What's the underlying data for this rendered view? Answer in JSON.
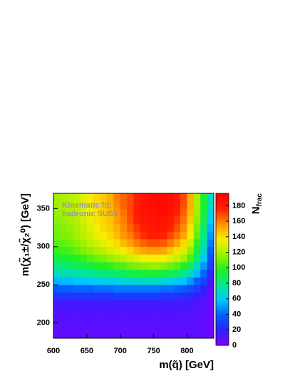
{
  "chart_data": {
    "type": "heatmap",
    "x_label": "m(q̃) [GeV]",
    "y_label": "m(χ̃₁±/χ̃₂⁰) [GeV]",
    "z_label": "N",
    "z_label_sub": "frac",
    "annotation": [
      "Kinematic fit:",
      "hadronic SUSY"
    ],
    "xbins": [
      600,
      610,
      620,
      630,
      640,
      650,
      660,
      670,
      680,
      690,
      700,
      710,
      720,
      730,
      740,
      750,
      760,
      770,
      780,
      790,
      800,
      810,
      820,
      830,
      840
    ],
    "ybins": [
      180,
      190,
      200,
      210,
      220,
      230,
      240,
      250,
      260,
      270,
      280,
      290,
      300,
      310,
      320,
      330,
      340,
      350,
      360,
      370
    ],
    "values": [
      [
        8,
        8,
        8,
        8,
        8,
        8,
        8,
        8,
        8,
        8,
        8,
        8,
        8,
        8,
        8,
        8,
        8,
        8,
        8,
        8,
        8,
        8,
        7,
        5
      ],
      [
        8,
        8,
        8,
        8,
        8,
        8,
        8,
        8,
        8,
        8,
        8,
        8,
        8,
        8,
        8,
        8,
        8,
        8,
        8,
        8,
        8,
        8,
        7,
        5
      ],
      [
        10,
        10,
        10,
        10,
        10,
        10,
        10,
        10,
        10,
        10,
        10,
        10,
        10,
        10,
        10,
        10,
        10,
        10,
        10,
        10,
        9,
        9,
        8,
        5
      ],
      [
        12,
        12,
        12,
        12,
        12,
        12,
        12,
        12,
        12,
        12,
        12,
        12,
        12,
        12,
        12,
        12,
        12,
        12,
        12,
        12,
        11,
        10,
        8,
        5
      ],
      [
        15,
        15,
        15,
        15,
        15,
        15,
        16,
        16,
        16,
        16,
        16,
        16,
        16,
        16,
        16,
        16,
        16,
        16,
        15,
        15,
        14,
        12,
        9,
        5
      ],
      [
        25,
        25,
        25,
        26,
        26,
        26,
        26,
        26,
        26,
        28,
        28,
        28,
        28,
        28,
        28,
        28,
        26,
        26,
        25,
        24,
        22,
        18,
        14,
        6
      ],
      [
        38,
        38,
        38,
        40,
        40,
        40,
        42,
        42,
        42,
        44,
        44,
        44,
        44,
        44,
        44,
        44,
        42,
        42,
        40,
        38,
        34,
        28,
        20,
        10
      ],
      [
        55,
        56,
        56,
        58,
        58,
        60,
        60,
        62,
        62,
        64,
        66,
        66,
        68,
        68,
        68,
        68,
        66,
        64,
        62,
        58,
        50,
        40,
        30,
        15
      ],
      [
        70,
        72,
        72,
        74,
        76,
        78,
        80,
        82,
        84,
        86,
        88,
        90,
        92,
        94,
        94,
        94,
        92,
        90,
        86,
        80,
        70,
        56,
        40,
        22
      ],
      [
        82,
        84,
        86,
        88,
        90,
        92,
        96,
        98,
        100,
        104,
        106,
        110,
        112,
        114,
        116,
        116,
        114,
        110,
        106,
        98,
        88,
        70,
        50,
        30
      ],
      [
        92,
        94,
        96,
        98,
        102,
        106,
        110,
        112,
        116,
        120,
        124,
        128,
        132,
        136,
        138,
        138,
        136,
        132,
        126,
        118,
        104,
        84,
        60,
        35
      ],
      [
        100,
        102,
        104,
        108,
        112,
        116,
        120,
        124,
        128,
        132,
        138,
        142,
        148,
        152,
        154,
        154,
        152,
        146,
        140,
        130,
        115,
        92,
        68,
        40
      ],
      [
        106,
        108,
        110,
        114,
        118,
        124,
        128,
        132,
        138,
        142,
        148,
        154,
        160,
        165,
        168,
        168,
        166,
        160,
        152,
        142,
        126,
        100,
        75,
        45
      ],
      [
        110,
        112,
        114,
        118,
        124,
        128,
        134,
        138,
        142,
        148,
        155,
        160,
        168,
        174,
        178,
        178,
        176,
        170,
        162,
        152,
        135,
        108,
        80,
        50
      ],
      [
        112,
        114,
        116,
        120,
        126,
        132,
        138,
        142,
        145,
        150,
        158,
        165,
        172,
        178,
        182,
        184,
        182,
        176,
        168,
        158,
        140,
        112,
        85,
        55
      ],
      [
        114,
        116,
        118,
        122,
        128,
        134,
        140,
        143,
        146,
        154,
        160,
        168,
        176,
        182,
        184,
        186,
        185,
        180,
        172,
        162,
        145,
        115,
        90,
        60
      ],
      [
        116,
        118,
        120,
        124,
        130,
        136,
        140,
        145,
        148,
        156,
        162,
        170,
        178,
        184,
        186,
        188,
        188,
        184,
        176,
        165,
        148,
        118,
        92,
        65
      ],
      [
        118,
        120,
        122,
        125,
        130,
        138,
        142,
        145,
        150,
        158,
        165,
        170,
        178,
        185,
        188,
        190,
        190,
        186,
        180,
        168,
        150,
        120,
        95,
        70
      ],
      [
        118,
        120,
        122,
        125,
        132,
        138,
        142,
        145,
        150,
        160,
        165,
        170,
        178,
        185,
        188,
        190,
        190,
        188,
        182,
        170,
        150,
        120,
        95,
        70
      ]
    ],
    "xlim": [
      600,
      840
    ],
    "ylim": [
      180,
      370
    ],
    "zlim": [
      0,
      196
    ],
    "xticks": [
      600,
      650,
      700,
      750,
      800
    ],
    "yticks": [
      200,
      250,
      300,
      350
    ],
    "zticks": [
      0,
      20,
      40,
      60,
      80,
      100,
      120,
      140,
      160,
      180
    ],
    "colormap": [
      "#8000ff",
      "#3020ff",
      "#0060ff",
      "#00c8ff",
      "#00e890",
      "#20f020",
      "#a0f000",
      "#f8f000",
      "#ff9000",
      "#ff2000",
      "#ff0000"
    ]
  }
}
